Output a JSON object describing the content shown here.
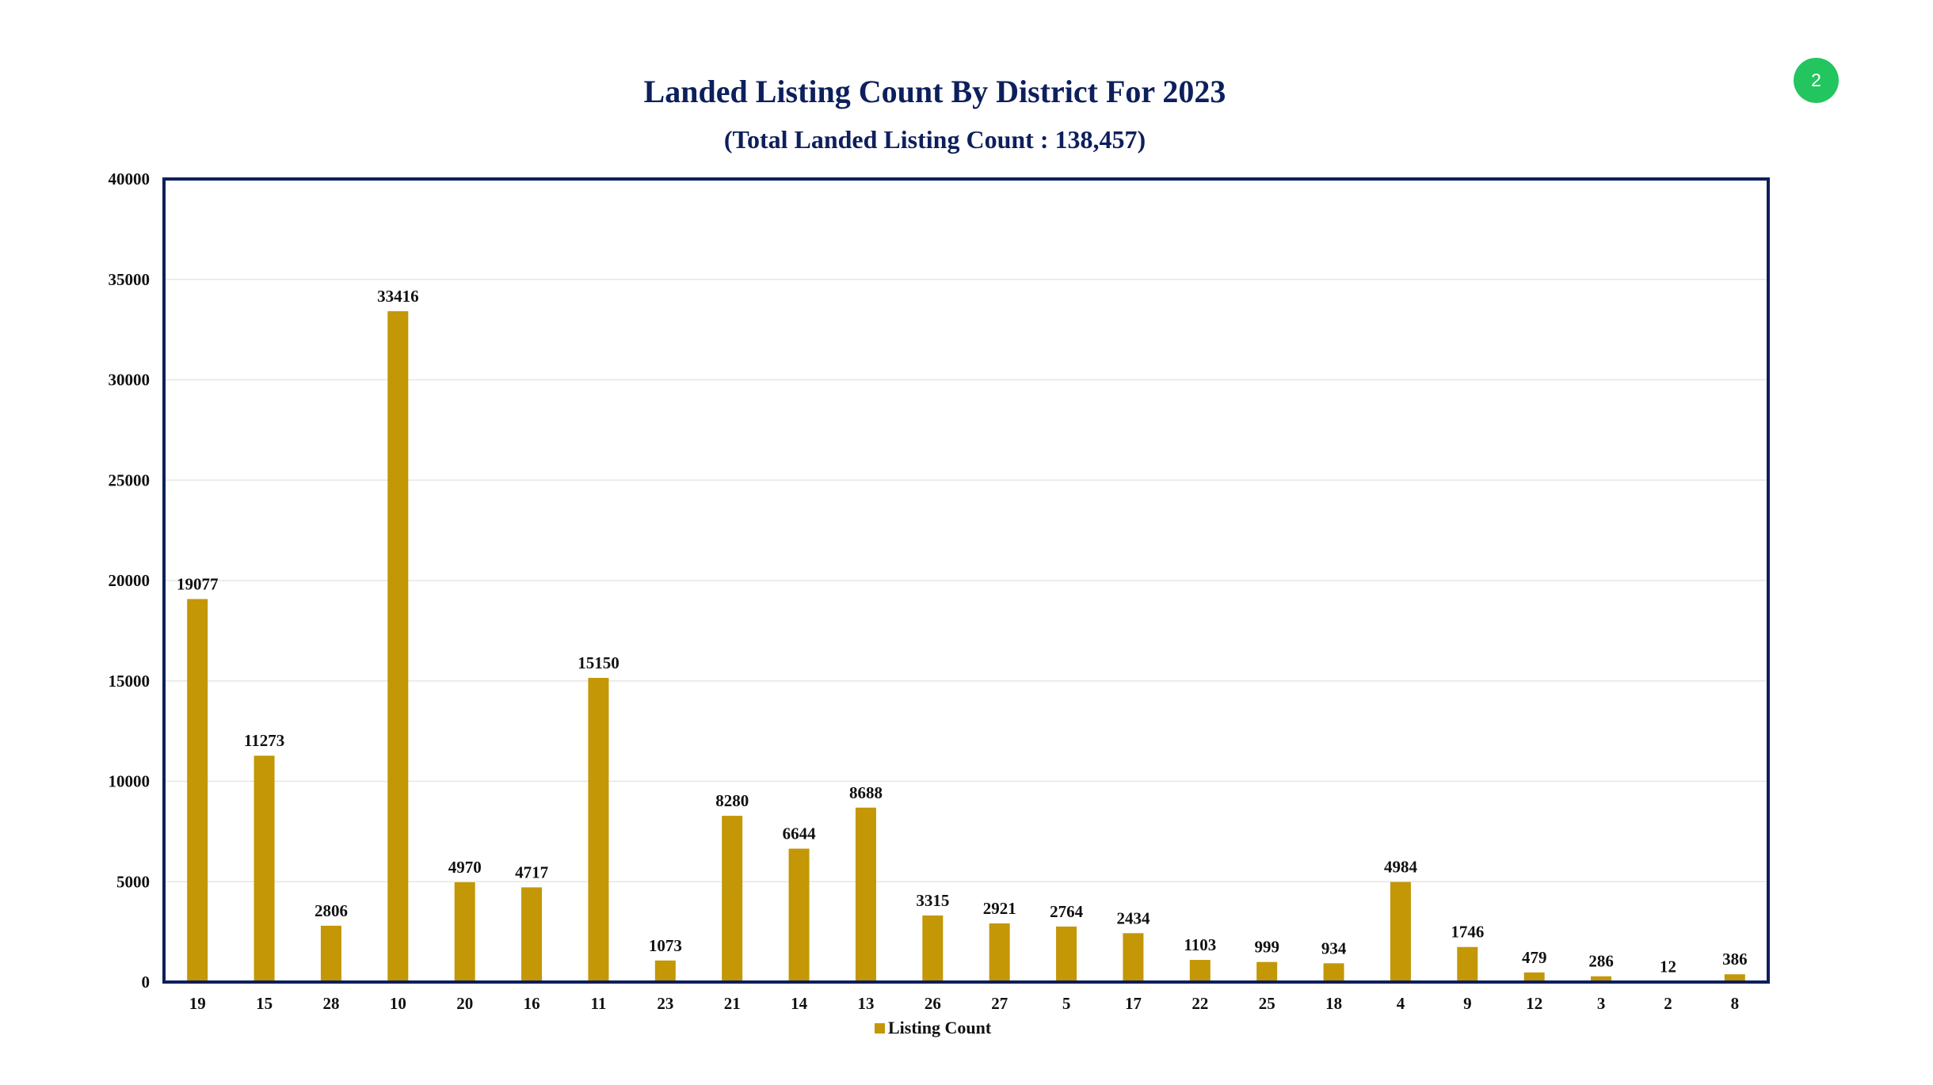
{
  "page": {
    "badge_number": "2"
  },
  "colors": {
    "bar": "#c39705",
    "frame": "#0d1f5c",
    "grid": "#e6e6e6",
    "badge": "#22c55e"
  },
  "chart_data": {
    "type": "bar",
    "title": "Landed Listing Count By District  For 2023",
    "subtitle": "(Total Landed Listing Count : 138,457)",
    "xlabel": "",
    "ylabel": "",
    "ylim": [
      0,
      40000
    ],
    "yticks": [
      0,
      5000,
      10000,
      15000,
      20000,
      25000,
      30000,
      35000,
      40000
    ],
    "grid": true,
    "legend_position": "bottom",
    "categories": [
      "19",
      "15",
      "28",
      "10",
      "20",
      "16",
      "11",
      "23",
      "21",
      "14",
      "13",
      "26",
      "27",
      "5",
      "17",
      "22",
      "25",
      "18",
      "4",
      "9",
      "12",
      "3",
      "2",
      "8"
    ],
    "series": [
      {
        "name": "Listing Count",
        "values": [
          19077,
          11273,
          2806,
          33416,
          4970,
          4717,
          15150,
          1073,
          8280,
          6644,
          8688,
          3315,
          2921,
          2764,
          2434,
          1103,
          999,
          934,
          4984,
          1746,
          479,
          286,
          12,
          386
        ]
      }
    ]
  }
}
